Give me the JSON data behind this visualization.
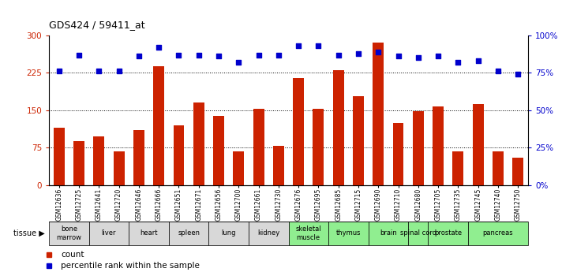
{
  "title": "GDS424 / 59411_at",
  "gsm_labels": [
    "GSM12636",
    "GSM12725",
    "GSM12641",
    "GSM12720",
    "GSM12646",
    "GSM12666",
    "GSM12651",
    "GSM12671",
    "GSM12656",
    "GSM12700",
    "GSM12661",
    "GSM12730",
    "GSM12676",
    "GSM12695",
    "GSM12685",
    "GSM12715",
    "GSM12690",
    "GSM12710",
    "GSM12680",
    "GSM12705",
    "GSM12735",
    "GSM12745",
    "GSM12740",
    "GSM12750"
  ],
  "counts": [
    115,
    88,
    97,
    68,
    110,
    238,
    120,
    165,
    138,
    68,
    153,
    79,
    215,
    153,
    230,
    178,
    285,
    125,
    148,
    157,
    68,
    162,
    68,
    55
  ],
  "percentiles": [
    76,
    87,
    76,
    76,
    86,
    92,
    87,
    87,
    86,
    82,
    87,
    87,
    93,
    93,
    87,
    88,
    89,
    86,
    85,
    86,
    82,
    83,
    76,
    74
  ],
  "tissues": [
    {
      "label": "bone\nmarrow",
      "start": 0,
      "end": 2,
      "color": "#d8d8d8"
    },
    {
      "label": "liver",
      "start": 2,
      "end": 4,
      "color": "#d8d8d8"
    },
    {
      "label": "heart",
      "start": 4,
      "end": 6,
      "color": "#d8d8d8"
    },
    {
      "label": "spleen",
      "start": 6,
      "end": 8,
      "color": "#d8d8d8"
    },
    {
      "label": "lung",
      "start": 8,
      "end": 10,
      "color": "#d8d8d8"
    },
    {
      "label": "kidney",
      "start": 10,
      "end": 12,
      "color": "#d8d8d8"
    },
    {
      "label": "skeletal\nmuscle",
      "start": 12,
      "end": 14,
      "color": "#90ee90"
    },
    {
      "label": "thymus",
      "start": 14,
      "end": 16,
      "color": "#90ee90"
    },
    {
      "label": "brain",
      "start": 16,
      "end": 18,
      "color": "#90ee90"
    },
    {
      "label": "spinal cord",
      "start": 18,
      "end": 19,
      "color": "#90ee90"
    },
    {
      "label": "prostate",
      "start": 19,
      "end": 21,
      "color": "#90ee90"
    },
    {
      "label": "pancreas",
      "start": 21,
      "end": 24,
      "color": "#90ee90"
    }
  ],
  "bar_color": "#cc2200",
  "dot_color": "#0000cc",
  "ylim_left": [
    0,
    300
  ],
  "ylim_right": [
    0,
    100
  ],
  "yticks_left": [
    0,
    75,
    150,
    225,
    300
  ],
  "yticks_right": [
    0,
    25,
    50,
    75,
    100
  ],
  "ytick_labels_left": [
    "0",
    "75",
    "150",
    "225",
    "300"
  ],
  "ytick_labels_right": [
    "0%",
    "25%",
    "50%",
    "75%",
    "100%"
  ],
  "grid_values": [
    75,
    150,
    225
  ],
  "bar_width": 0.55
}
